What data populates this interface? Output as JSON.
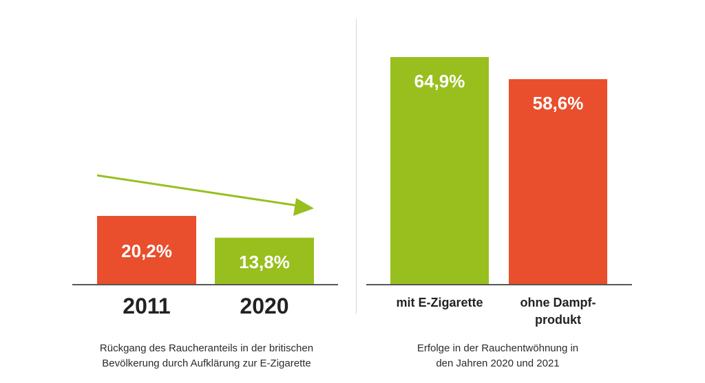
{
  "colors": {
    "green": "#98bf1e",
    "red": "#e94e2d",
    "axis": "#555555",
    "text": "#222222",
    "label_on_bar": "#ffffff"
  },
  "chart_data": [
    {
      "type": "bar",
      "categories": [
        "2011",
        "2020"
      ],
      "values": [
        20.2,
        13.8
      ],
      "value_labels": [
        "20,2%",
        "13,8%"
      ],
      "bar_colors": [
        "#e94e2d",
        "#98bf1e"
      ],
      "trend_arrow": "decreasing",
      "caption_lines": [
        "Rückgang des Raucheranteils in der britischen",
        "Bevölkerung durch Aufklärung zur E-Zigarette"
      ]
    },
    {
      "type": "bar",
      "categories": [
        [
          "mit E-Zigarette"
        ],
        [
          "ohne Dampf-",
          "produkt"
        ]
      ],
      "values": [
        64.9,
        58.6
      ],
      "value_labels": [
        "64,9%",
        "58,6%"
      ],
      "bar_colors": [
        "#98bf1e",
        "#e94e2d"
      ],
      "caption_lines": [
        "Erfolge in der Rauchentwöhnung in",
        "den Jahren 2020 und 2021"
      ]
    }
  ]
}
